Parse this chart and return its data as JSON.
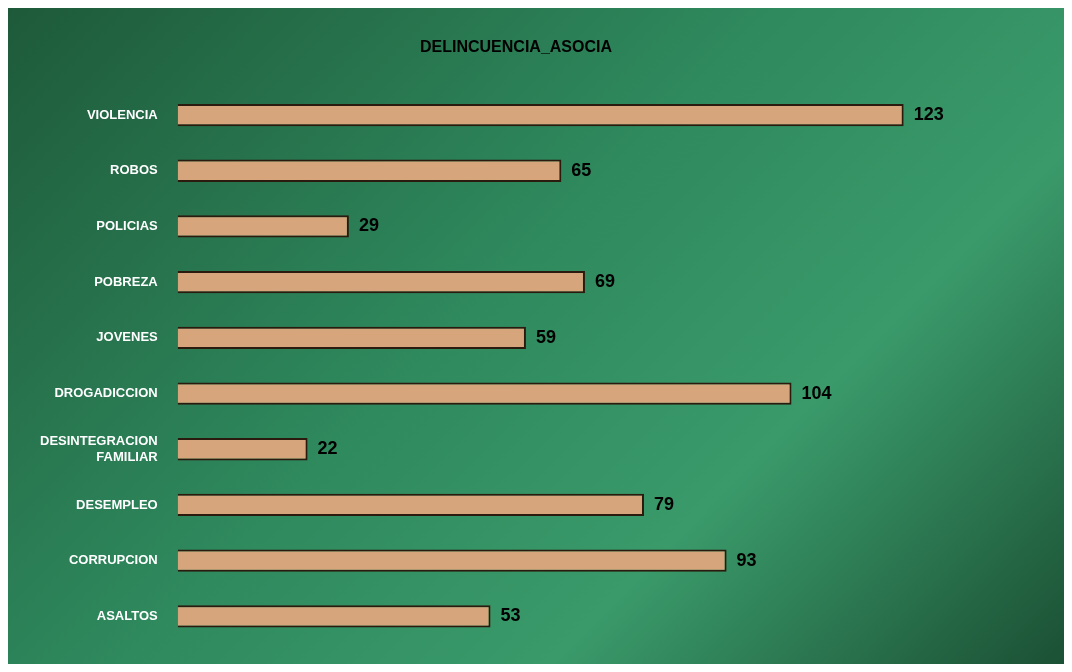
{
  "chart_data": {
    "type": "bar",
    "orientation": "horizontal",
    "title": "DELINCUENCIA_ASOCIA",
    "tick_labels": "y",
    "categories": [
      "VIOLENCIA",
      "ROBOS",
      "POLICIAS",
      "POBREZA",
      "JOVENES",
      "DROGADICCION",
      "DESINTEGRACION FAMILIAR",
      "DESEMPLEO",
      "CORRUPCION",
      "ASALTOS"
    ],
    "values": [
      123,
      65,
      29,
      69,
      59,
      104,
      22,
      79,
      93,
      53
    ],
    "color": "#d6a57c",
    "data_labels": true,
    "legend": false
  }
}
